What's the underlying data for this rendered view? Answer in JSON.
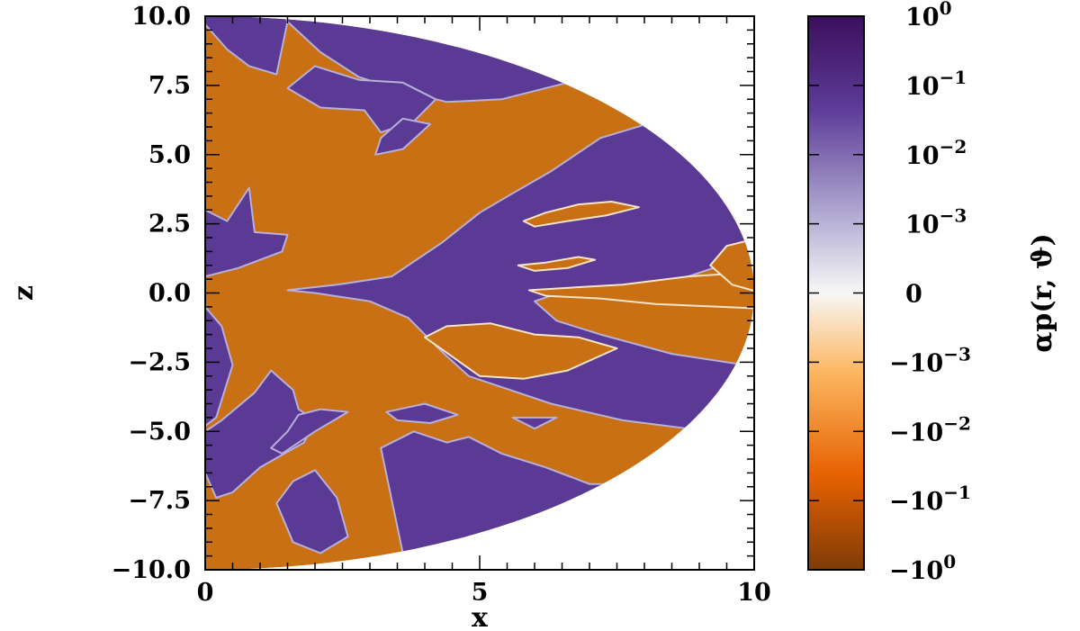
{
  "chart_data": {
    "type": "heatmap",
    "title": "",
    "xlabel": "x",
    "ylabel": "z",
    "xlim": [
      0,
      10
    ],
    "ylim": [
      -10,
      10
    ],
    "grid": false,
    "domain_shape": "half-disk of radius 10 centered at origin (x >= 0)",
    "x_ticks": [
      {
        "value": 0,
        "label": "0"
      },
      {
        "value": 5,
        "label": "5"
      },
      {
        "value": 10,
        "label": "10"
      }
    ],
    "y_ticks": [
      {
        "value": 10,
        "label": "10.0"
      },
      {
        "value": 7.5,
        "label": "7.5"
      },
      {
        "value": 5,
        "label": "5.0"
      },
      {
        "value": 2.5,
        "label": "2.5"
      },
      {
        "value": 0,
        "label": "0.0"
      },
      {
        "value": -2.5,
        "label": "−2.5"
      },
      {
        "value": -5,
        "label": "−5.0"
      },
      {
        "value": -7.5,
        "label": "−7.5"
      },
      {
        "value": -10,
        "label": "−10.0"
      }
    ],
    "colorbar": {
      "label": "αp(r, ϑ)",
      "scale": "symlog",
      "ticks": [
        {
          "base": "10",
          "exp": "0",
          "sign": ""
        },
        {
          "base": "10",
          "exp": "−1",
          "sign": ""
        },
        {
          "base": "10",
          "exp": "−2",
          "sign": ""
        },
        {
          "base": "10",
          "exp": "−3",
          "sign": ""
        },
        {
          "base": "0",
          "exp": "",
          "sign": ""
        },
        {
          "base": "10",
          "exp": "−3",
          "sign": "−"
        },
        {
          "base": "10",
          "exp": "−2",
          "sign": "−"
        },
        {
          "base": "10",
          "exp": "−1",
          "sign": "−"
        },
        {
          "base": "10",
          "exp": "0",
          "sign": "−"
        }
      ],
      "colors": [
        "#3b0f5c",
        "#5e3c99",
        "#b2abd2",
        "#f7f7f7",
        "#fdb863",
        "#e66101",
        "#7f3b08"
      ]
    },
    "colors": {
      "positive": "#5a3a95",
      "negative": "#c96f14",
      "negative_dark": "#a85608"
    }
  }
}
